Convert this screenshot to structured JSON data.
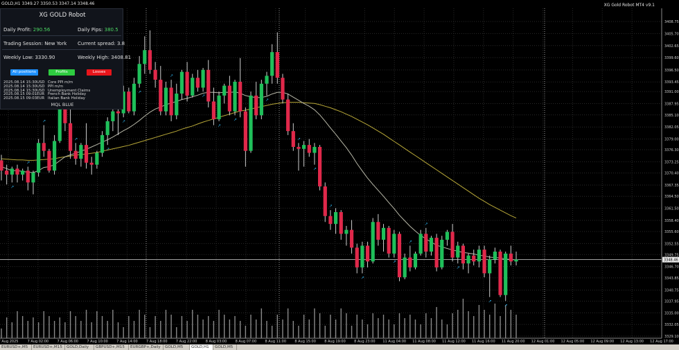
{
  "header": {
    "symbol": "GOLD,H1",
    "ohlc": "3349.27 3350.53 3347.14 3348.46",
    "robot_title": "XG Gold Robot MT4 v9.1"
  },
  "panel": {
    "title": "XG GOLD Robot",
    "daily_profit_label": "Daily Profit:",
    "daily_profit_value": "290.56",
    "daily_pips_label": "Daily Pips:",
    "daily_pips_value": "380.5",
    "session": "Trading Session: New York",
    "spread": "Current spread: 3.8",
    "weekly_low": "Weekly Low: 3330.90",
    "weekly_high": "Weekly High: 3408.81",
    "buttons": {
      "all": "All positions",
      "profits": "Profits",
      "losses": "Losses"
    },
    "events": [
      {
        "date": "2025.08.14 15:30",
        "cur": "USD",
        "name": "Core PPI m/m"
      },
      {
        "date": "2025.08.14 15:30",
        "cur": "USD",
        "name": "PPI m/m"
      },
      {
        "date": "2025.08.14 15:30",
        "cur": "USD",
        "name": "Unemployment Claims"
      },
      {
        "date": "2025.08.15 09:01",
        "cur": "EUR",
        "name": "French Bank Holiday"
      },
      {
        "date": "2025.08.15 09:03",
        "cur": "EUR",
        "name": "Italian Bank Holiday"
      }
    ],
    "brand": "MQL BLUE"
  },
  "current_price": "3348.46",
  "price_ticks": [
    "3408.75",
    "3405.70",
    "3402.65",
    "3399.60",
    "3396.50",
    "3393.45",
    "3391.00",
    "3387.95",
    "3385.10",
    "3382.05",
    "3379.00",
    "3376.30",
    "3373.25",
    "3370.40",
    "3367.35",
    "3364.50",
    "3361.50",
    "3358.40",
    "3355.60",
    "3352.55",
    "3349.75",
    "3346.70",
    "3343.85",
    "3340.75",
    "3337.95",
    "3335.00",
    "3332.05",
    "3329.10"
  ],
  "time_ticks": [
    "7 Aug 2025",
    "7 Aug 02:00",
    "7 Aug 06:00",
    "7 Aug 10:00",
    "7 Aug 14:00",
    "7 Aug 18:00",
    "7 Aug 22:00",
    "8 Aug 03:00",
    "8 Aug 07:00",
    "8 Aug 11:00",
    "8 Aug 15:00",
    "8 Aug 19:00",
    "8 Aug 23:00",
    "11 Aug 04:00",
    "11 Aug 08:00",
    "11 Aug 12:00",
    "11 Aug 16:00",
    "11 Aug 20:00",
    "12 Aug 01:00",
    "12 Aug 05:00",
    "12 Aug 09:00",
    "12 Aug 13:00",
    "12 Aug 17:00"
  ],
  "tabs": [
    "EURUSD+,M5",
    "EURUSD+,M15",
    "GOLD,Daily",
    "GBPUSD+,M15",
    "EURGBP+,Daily",
    "GOLD,M5",
    "GOLD,H1",
    "GOLD,M5"
  ],
  "active_tab": 6,
  "colors": {
    "bull": "#1fbf5a",
    "bear": "#e0284a",
    "ma_fast": "#b8b8a8",
    "ma_slow": "#b8a838",
    "grid": "#2a2a2a",
    "volume": "#8a8a8a",
    "arrow": "#2aa8e0"
  },
  "chart_data": {
    "type": "candlestick",
    "y_range": [
      3329.1,
      3408.75
    ],
    "candles": [
      {
        "o": 3373.6,
        "h": 3375.0,
        "l": 3368.5,
        "c": 3371.0
      },
      {
        "o": 3371.0,
        "h": 3372.5,
        "l": 3367.5,
        "c": 3370.0
      },
      {
        "o": 3370.0,
        "h": 3372.0,
        "l": 3368.0,
        "c": 3371.5
      },
      {
        "o": 3371.5,
        "h": 3372.5,
        "l": 3368.0,
        "c": 3370.0
      },
      {
        "o": 3370.0,
        "h": 3371.5,
        "l": 3368.5,
        "c": 3371.0
      },
      {
        "o": 3371.0,
        "h": 3372.0,
        "l": 3366.0,
        "c": 3368.0
      },
      {
        "o": 3368.0,
        "h": 3371.0,
        "l": 3365.0,
        "c": 3370.5
      },
      {
        "o": 3370.5,
        "h": 3379.0,
        "l": 3369.5,
        "c": 3378.0
      },
      {
        "o": 3378.0,
        "h": 3382.5,
        "l": 3374.5,
        "c": 3376.0
      },
      {
        "o": 3376.0,
        "h": 3376.5,
        "l": 3370.5,
        "c": 3371.0
      },
      {
        "o": 3371.0,
        "h": 3380.0,
        "l": 3370.0,
        "c": 3378.5
      },
      {
        "o": 3378.5,
        "h": 3389.5,
        "l": 3378.0,
        "c": 3388.0
      },
      {
        "o": 3388.0,
        "h": 3392.0,
        "l": 3381.0,
        "c": 3383.0
      },
      {
        "o": 3383.0,
        "h": 3386.5,
        "l": 3374.0,
        "c": 3376.0
      },
      {
        "o": 3376.0,
        "h": 3378.0,
        "l": 3372.5,
        "c": 3374.0
      },
      {
        "o": 3374.0,
        "h": 3378.0,
        "l": 3372.0,
        "c": 3377.5
      },
      {
        "o": 3377.5,
        "h": 3383.0,
        "l": 3371.5,
        "c": 3373.0
      },
      {
        "o": 3373.0,
        "h": 3374.5,
        "l": 3370.0,
        "c": 3372.5
      },
      {
        "o": 3372.5,
        "h": 3376.0,
        "l": 3371.5,
        "c": 3375.5
      },
      {
        "o": 3375.5,
        "h": 3381.0,
        "l": 3374.5,
        "c": 3380.0
      },
      {
        "o": 3380.0,
        "h": 3384.5,
        "l": 3377.5,
        "c": 3383.5
      },
      {
        "o": 3383.5,
        "h": 3389.0,
        "l": 3381.0,
        "c": 3386.0
      },
      {
        "o": 3386.0,
        "h": 3388.0,
        "l": 3380.0,
        "c": 3385.5
      },
      {
        "o": 3385.5,
        "h": 3392.5,
        "l": 3384.5,
        "c": 3391.0
      },
      {
        "o": 3391.0,
        "h": 3392.0,
        "l": 3385.5,
        "c": 3386.0
      },
      {
        "o": 3386.0,
        "h": 3394.5,
        "l": 3385.0,
        "c": 3393.0
      },
      {
        "o": 3393.0,
        "h": 3400.0,
        "l": 3392.0,
        "c": 3398.0
      },
      {
        "o": 3398.0,
        "h": 3405.0,
        "l": 3395.5,
        "c": 3401.5
      },
      {
        "o": 3401.5,
        "h": 3406.5,
        "l": 3395.5,
        "c": 3396.5
      },
      {
        "o": 3396.5,
        "h": 3398.5,
        "l": 3392.0,
        "c": 3394.0
      },
      {
        "o": 3394.0,
        "h": 3397.5,
        "l": 3385.0,
        "c": 3386.0
      },
      {
        "o": 3386.0,
        "h": 3393.5,
        "l": 3385.0,
        "c": 3392.0
      },
      {
        "o": 3392.0,
        "h": 3394.0,
        "l": 3383.5,
        "c": 3385.0
      },
      {
        "o": 3385.0,
        "h": 3393.0,
        "l": 3384.0,
        "c": 3390.5
      },
      {
        "o": 3390.5,
        "h": 3396.5,
        "l": 3389.0,
        "c": 3396.0
      },
      {
        "o": 3396.0,
        "h": 3398.5,
        "l": 3388.5,
        "c": 3390.0
      },
      {
        "o": 3390.0,
        "h": 3395.5,
        "l": 3389.5,
        "c": 3394.5
      },
      {
        "o": 3394.5,
        "h": 3396.5,
        "l": 3391.0,
        "c": 3392.0
      },
      {
        "o": 3392.0,
        "h": 3397.0,
        "l": 3391.0,
        "c": 3396.5
      },
      {
        "o": 3396.5,
        "h": 3399.0,
        "l": 3387.0,
        "c": 3388.5
      },
      {
        "o": 3388.5,
        "h": 3392.0,
        "l": 3382.5,
        "c": 3384.0
      },
      {
        "o": 3384.0,
        "h": 3391.0,
        "l": 3383.5,
        "c": 3390.0
      },
      {
        "o": 3390.0,
        "h": 3393.0,
        "l": 3388.0,
        "c": 3392.5
      },
      {
        "o": 3392.5,
        "h": 3395.0,
        "l": 3385.0,
        "c": 3386.0
      },
      {
        "o": 3386.0,
        "h": 3394.0,
        "l": 3385.0,
        "c": 3393.5
      },
      {
        "o": 3393.5,
        "h": 3399.5,
        "l": 3384.5,
        "c": 3386.0
      },
      {
        "o": 3386.0,
        "h": 3387.0,
        "l": 3372.0,
        "c": 3376.0
      },
      {
        "o": 3376.0,
        "h": 3391.0,
        "l": 3375.5,
        "c": 3390.0
      },
      {
        "o": 3390.0,
        "h": 3393.5,
        "l": 3384.0,
        "c": 3385.0
      },
      {
        "o": 3385.0,
        "h": 3394.0,
        "l": 3384.0,
        "c": 3393.0
      },
      {
        "o": 3393.0,
        "h": 3396.0,
        "l": 3390.0,
        "c": 3395.0
      },
      {
        "o": 3395.0,
        "h": 3403.0,
        "l": 3393.0,
        "c": 3401.0
      },
      {
        "o": 3401.0,
        "h": 3406.0,
        "l": 3393.0,
        "c": 3394.5
      },
      {
        "o": 3394.5,
        "h": 3395.5,
        "l": 3388.0,
        "c": 3389.0
      },
      {
        "o": 3389.0,
        "h": 3390.5,
        "l": 3380.0,
        "c": 3381.0
      },
      {
        "o": 3381.0,
        "h": 3383.0,
        "l": 3376.0,
        "c": 3377.0
      },
      {
        "o": 3377.0,
        "h": 3378.0,
        "l": 3371.0,
        "c": 3376.5
      },
      {
        "o": 3376.5,
        "h": 3378.5,
        "l": 3372.0,
        "c": 3377.5
      },
      {
        "o": 3377.5,
        "h": 3379.0,
        "l": 3374.5,
        "c": 3375.5
      },
      {
        "o": 3375.5,
        "h": 3378.0,
        "l": 3372.5,
        "c": 3377.0
      },
      {
        "o": 3377.0,
        "h": 3377.5,
        "l": 3366.0,
        "c": 3367.0
      },
      {
        "o": 3367.0,
        "h": 3368.0,
        "l": 3358.0,
        "c": 3359.5
      },
      {
        "o": 3359.5,
        "h": 3361.0,
        "l": 3356.0,
        "c": 3357.5
      },
      {
        "o": 3357.5,
        "h": 3361.5,
        "l": 3355.0,
        "c": 3360.5
      },
      {
        "o": 3360.5,
        "h": 3361.0,
        "l": 3353.5,
        "c": 3355.0
      },
      {
        "o": 3355.0,
        "h": 3357.0,
        "l": 3352.0,
        "c": 3356.0
      },
      {
        "o": 3356.0,
        "h": 3358.5,
        "l": 3350.0,
        "c": 3351.5
      },
      {
        "o": 3351.5,
        "h": 3352.5,
        "l": 3345.0,
        "c": 3346.5
      },
      {
        "o": 3346.5,
        "h": 3353.0,
        "l": 3345.0,
        "c": 3352.0
      },
      {
        "o": 3352.0,
        "h": 3353.0,
        "l": 3346.5,
        "c": 3348.0
      },
      {
        "o": 3348.0,
        "h": 3359.0,
        "l": 3347.5,
        "c": 3358.0
      },
      {
        "o": 3358.0,
        "h": 3360.0,
        "l": 3352.0,
        "c": 3353.5
      },
      {
        "o": 3353.5,
        "h": 3357.5,
        "l": 3350.5,
        "c": 3356.5
      },
      {
        "o": 3356.5,
        "h": 3357.0,
        "l": 3349.0,
        "c": 3350.0
      },
      {
        "o": 3350.0,
        "h": 3356.0,
        "l": 3349.0,
        "c": 3355.0
      },
      {
        "o": 3355.0,
        "h": 3355.5,
        "l": 3343.0,
        "c": 3344.0
      },
      {
        "o": 3344.0,
        "h": 3350.0,
        "l": 3343.5,
        "c": 3349.0
      },
      {
        "o": 3349.0,
        "h": 3352.0,
        "l": 3345.5,
        "c": 3346.5
      },
      {
        "o": 3346.5,
        "h": 3350.5,
        "l": 3346.0,
        "c": 3350.0
      },
      {
        "o": 3350.0,
        "h": 3356.0,
        "l": 3349.5,
        "c": 3355.0
      },
      {
        "o": 3355.0,
        "h": 3356.5,
        "l": 3349.0,
        "c": 3350.5
      },
      {
        "o": 3350.5,
        "h": 3354.5,
        "l": 3349.5,
        "c": 3354.0
      },
      {
        "o": 3354.0,
        "h": 3355.0,
        "l": 3345.5,
        "c": 3346.5
      },
      {
        "o": 3346.5,
        "h": 3354.5,
        "l": 3346.0,
        "c": 3353.5
      },
      {
        "o": 3353.5,
        "h": 3356.0,
        "l": 3352.0,
        "c": 3355.5
      },
      {
        "o": 3355.5,
        "h": 3357.5,
        "l": 3348.0,
        "c": 3349.0
      },
      {
        "o": 3349.0,
        "h": 3353.0,
        "l": 3347.5,
        "c": 3352.0
      },
      {
        "o": 3352.0,
        "h": 3352.5,
        "l": 3346.0,
        "c": 3347.5
      },
      {
        "o": 3347.5,
        "h": 3350.0,
        "l": 3345.0,
        "c": 3349.5
      },
      {
        "o": 3349.5,
        "h": 3351.0,
        "l": 3347.0,
        "c": 3348.0
      },
      {
        "o": 3348.0,
        "h": 3352.0,
        "l": 3346.5,
        "c": 3351.0
      },
      {
        "o": 3351.0,
        "h": 3352.0,
        "l": 3344.0,
        "c": 3345.0
      },
      {
        "o": 3345.0,
        "h": 3349.5,
        "l": 3339.0,
        "c": 3348.5
      },
      {
        "o": 3348.5,
        "h": 3351.5,
        "l": 3347.5,
        "c": 3350.5
      },
      {
        "o": 3350.5,
        "h": 3351.0,
        "l": 3339.0,
        "c": 3339.5
      },
      {
        "o": 3339.5,
        "h": 3350.5,
        "l": 3338.0,
        "c": 3350.0
      },
      {
        "o": 3350.0,
        "h": 3352.0,
        "l": 3347.0,
        "c": 3348.0
      },
      {
        "o": 3348.0,
        "h": 3350.5,
        "l": 3347.0,
        "c": 3348.5
      }
    ],
    "ma_fast": [
      3372,
      3371.5,
      3371,
      3371,
      3370.8,
      3370.6,
      3370.5,
      3371,
      3371.8,
      3372,
      3372.5,
      3373.5,
      3374.5,
      3375,
      3375.4,
      3375.9,
      3376.4,
      3377,
      3377.6,
      3378.2,
      3378.8,
      3379.5,
      3380.3,
      3381.1,
      3381.8,
      3382.7,
      3383.7,
      3384.8,
      3385.8,
      3386.6,
      3387.1,
      3387.7,
      3388.1,
      3388.5,
      3389,
      3389.3,
      3389.7,
      3390.1,
      3390.6,
      3390.8,
      3390.8,
      3390.7,
      3390.8,
      3390.8,
      3390.9,
      3390.6,
      3390,
      3389.7,
      3389.5,
      3389.5,
      3389.8,
      3390.4,
      3390.8,
      3390.8,
      3390.4,
      3389.6,
      3388.8,
      3388,
      3387.3,
      3386.4,
      3385.1,
      3383.5,
      3381.8,
      3380.2,
      3378.5,
      3376.8,
      3374.9,
      3372.8,
      3370.9,
      3369.1,
      3367.5,
      3366,
      3364.5,
      3362.9,
      3361.4,
      3359.7,
      3358.3,
      3356.9,
      3355.7,
      3354.6,
      3353.7,
      3352.9,
      3352.1,
      3351.7,
      3351.3,
      3350.9,
      3350.6,
      3350.3,
      3350.1,
      3349.9,
      3349.6,
      3349.4,
      3349.1,
      3349,
      3348.9,
      3348.6,
      3348.5,
      3348.4
    ],
    "ma_slow": [
      3374,
      3373.9,
      3373.8,
      3373.7,
      3373.7,
      3373.6,
      3373.6,
      3373.7,
      3373.8,
      3373.9,
      3374,
      3374.3,
      3374.5,
      3374.7,
      3374.9,
      3375.1,
      3375.2,
      3375.4,
      3375.6,
      3375.9,
      3376.2,
      3376.5,
      3376.8,
      3377.1,
      3377.4,
      3377.8,
      3378.2,
      3378.6,
      3379,
      3379.4,
      3379.8,
      3380.2,
      3380.6,
      3381,
      3381.5,
      3381.9,
      3382.3,
      3382.8,
      3383.3,
      3383.7,
      3384.1,
      3384.5,
      3384.9,
      3385.3,
      3385.7,
      3386.1,
      3386.3,
      3386.6,
      3386.9,
      3387.2,
      3387.5,
      3387.8,
      3388,
      3388.2,
      3388.3,
      3388.3,
      3388.3,
      3388.2,
      3388.1,
      3388,
      3387.7,
      3387.3,
      3386.9,
      3386.4,
      3385.9,
      3385.3,
      3384.7,
      3384,
      3383.3,
      3382.6,
      3381.8,
      3381,
      3380.2,
      3379.3,
      3378.4,
      3377.5,
      3376.6,
      3375.7,
      3374.8,
      3373.9,
      3373,
      3372.1,
      3371.2,
      3370.3,
      3369.4,
      3368.5,
      3367.6,
      3366.7,
      3365.8,
      3364.9,
      3364,
      3363.2,
      3362.4,
      3361.7,
      3361,
      3360.3,
      3359.6,
      3359
    ]
  }
}
